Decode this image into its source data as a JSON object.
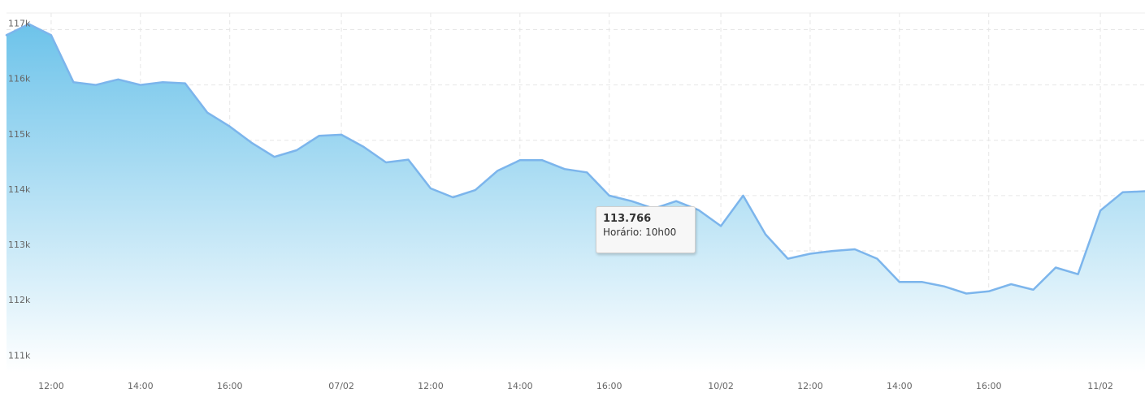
{
  "colors": {
    "line": "#7cb5ec",
    "area_top": "#6dc3ea",
    "area_bottom": "#ffffff",
    "grid": "#e6e6e6",
    "tick_text": "#666666",
    "tooltip_bg": "#f7f7f7",
    "tooltip_border": "#cfcfcf"
  },
  "tooltip": {
    "value": "113.766",
    "time_label": "Horário:",
    "time_value": "10h00"
  },
  "chart_data": {
    "type": "area",
    "title": "",
    "xlabel": "",
    "ylabel": "",
    "grid": true,
    "legend": "none",
    "ylim": [
      110800,
      117300
    ],
    "y_ticks": [
      {
        "value": 117000,
        "label": "117k"
      },
      {
        "value": 116000,
        "label": "116k"
      },
      {
        "value": 115000,
        "label": "115k"
      },
      {
        "value": 114000,
        "label": "114k"
      },
      {
        "value": 113000,
        "label": "113k"
      },
      {
        "value": 112000,
        "label": "112k"
      },
      {
        "value": 111000,
        "label": "111k"
      }
    ],
    "x_ticks": [
      {
        "index": 2,
        "label": "12:00"
      },
      {
        "index": 6,
        "label": "14:00"
      },
      {
        "index": 10,
        "label": "16:00"
      },
      {
        "index": 15,
        "label": "07/02"
      },
      {
        "index": 19,
        "label": "12:00"
      },
      {
        "index": 23,
        "label": "14:00"
      },
      {
        "index": 27,
        "label": "16:00"
      },
      {
        "index": 32,
        "label": "10/02"
      },
      {
        "index": 36,
        "label": "12:00"
      },
      {
        "index": 40,
        "label": "14:00"
      },
      {
        "index": 44,
        "label": "16:00"
      },
      {
        "index": 49,
        "label": "11/02"
      }
    ],
    "series": [
      {
        "values": [
          116900,
          117100,
          116900,
          116050,
          116000,
          116100,
          116000,
          116050,
          116030,
          115500,
          115250,
          114950,
          114700,
          114820,
          115080,
          115100,
          114880,
          114600,
          114650,
          114130,
          113970,
          114100,
          114450,
          114640,
          114640,
          114480,
          114420,
          114000,
          113900,
          113766,
          113900,
          113740,
          113450,
          114000,
          113300,
          112860,
          112950,
          113000,
          113030,
          112860,
          112440,
          112440,
          112360,
          112230,
          112270,
          112400,
          112300,
          112700,
          112580,
          113730,
          114060,
          114080
        ]
      }
    ]
  }
}
